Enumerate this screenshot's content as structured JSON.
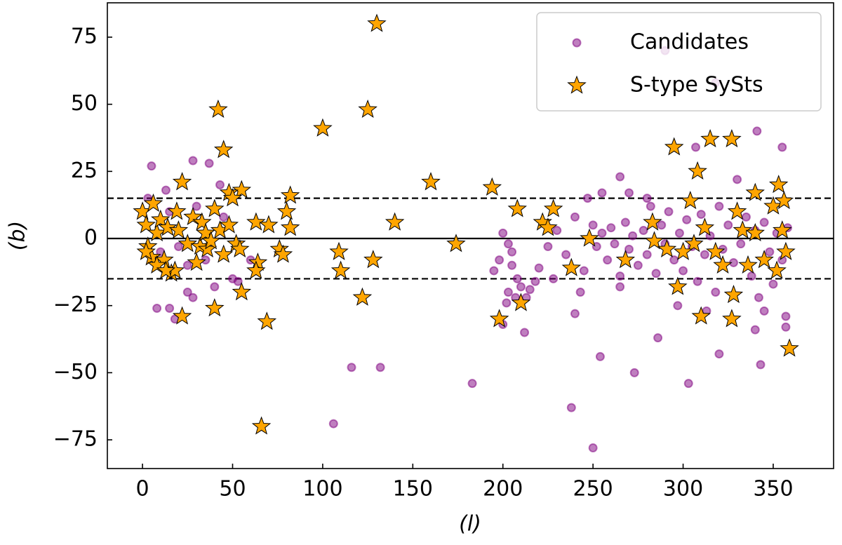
{
  "chart_data": {
    "type": "scatter",
    "xlabel": "(l)",
    "ylabel": "(b)",
    "xlim": [
      -19.5,
      383.5
    ],
    "ylim": [
      -85.7,
      87.8
    ],
    "xticks": [
      0,
      50,
      100,
      150,
      200,
      250,
      300,
      350
    ],
    "yticks": [
      {
        "value": -75,
        "label": "−75"
      },
      {
        "value": -50,
        "label": "−50"
      },
      {
        "value": -25,
        "label": "−25"
      },
      0,
      25,
      50,
      75
    ],
    "hlines": [
      {
        "value": 0,
        "style": "solid"
      },
      {
        "value": 15,
        "style": "dashed"
      },
      {
        "value": -15,
        "style": "dashed"
      }
    ],
    "legend": "upper right",
    "series": [
      {
        "name": "Candidates",
        "color": "#800080",
        "alpha": 0.5,
        "marker": "circle",
        "x": [
          5,
          28,
          37,
          43,
          13,
          8,
          15,
          25,
          28,
          18,
          50,
          53,
          106,
          116,
          132,
          183,
          238,
          250,
          254,
          273,
          303,
          286,
          320,
          343,
          340,
          357,
          355,
          341,
          307,
          290,
          318,
          265,
          255,
          270,
          200,
          212,
          240,
          205,
          208,
          195,
          203,
          210,
          215,
          213,
          218,
          200,
          203,
          205,
          198,
          202,
          207,
          220,
          225,
          230,
          235,
          240,
          245,
          250,
          252,
          255,
          258,
          260,
          262,
          265,
          268,
          270,
          272,
          275,
          278,
          280,
          282,
          285,
          288,
          290,
          292,
          295,
          298,
          300,
          302,
          305,
          308,
          310,
          312,
          315,
          318,
          320,
          322,
          325,
          328,
          330,
          332,
          335,
          338,
          340,
          342,
          345,
          348,
          350,
          352,
          355,
          357,
          358,
          247,
          243,
          265,
          280,
          297,
          313,
          345,
          60,
          10,
          20,
          30,
          35,
          45,
          3,
          15,
          40,
          25,
          228
        ],
        "values": [
          27,
          29,
          28,
          20,
          18,
          -26,
          -26,
          -20,
          -22,
          -30,
          -15,
          -16,
          -69,
          -48,
          -48,
          -54,
          -63,
          -78,
          -44,
          -50,
          -54,
          -37,
          -43,
          -47,
          -34,
          -29,
          34,
          40,
          34,
          70,
          58,
          23,
          17,
          17,
          -32,
          -35,
          -28,
          -10,
          -15,
          -12,
          -20,
          -18,
          -19,
          -22,
          -16,
          2,
          -2,
          -5,
          -8,
          -24,
          -22,
          -11,
          -3,
          3,
          -6,
          8,
          -12,
          5,
          -3,
          2,
          -8,
          4,
          -2,
          -14,
          6,
          -4,
          1,
          -10,
          3,
          -6,
          12,
          -13,
          5,
          -2,
          10,
          -8,
          2,
          -12,
          7,
          -3,
          -16,
          9,
          -6,
          1,
          -20,
          12,
          -4,
          5,
          -9,
          22,
          -2,
          8,
          -14,
          3,
          -22,
          6,
          -5,
          -17,
          2,
          -8,
          -33,
          4,
          15,
          -20,
          -18,
          15,
          -25,
          -27,
          -27,
          -8,
          -5,
          -3,
          12,
          -8,
          8,
          15,
          10,
          -18,
          -10,
          -15
        ]
      },
      {
        "name": "S-type SySts",
        "color": "#ffa500",
        "edgecolor": "#000000",
        "marker": "star",
        "x": [
          130,
          42,
          125,
          100,
          45,
          22,
          160,
          194,
          55,
          48,
          82,
          80,
          63,
          70,
          82,
          140,
          109,
          128,
          110,
          174,
          76,
          78,
          64,
          63,
          55,
          40,
          22,
          69,
          66,
          122,
          198,
          210,
          208,
          222,
          228,
          225,
          248,
          238,
          268,
          283,
          284,
          295,
          291,
          297,
          304,
          308,
          315,
          327,
          306,
          310,
          327,
          328,
          330,
          333,
          340,
          345,
          350,
          353,
          356,
          359,
          355,
          357,
          352,
          340,
          336,
          322,
          318,
          312,
          300,
          0,
          2,
          3,
          5,
          6,
          8,
          10,
          12,
          14,
          16,
          18,
          19,
          20,
          25,
          28,
          30,
          32,
          33,
          35,
          36,
          38,
          40,
          43,
          45,
          48,
          52,
          50,
          54,
          2,
          8,
          13
        ],
        "values": [
          80,
          48,
          48,
          41,
          33,
          21,
          21,
          19,
          18,
          17,
          16,
          10,
          6,
          5,
          4,
          6,
          -5,
          -8,
          -12,
          -2,
          -4,
          -6,
          -9,
          -12,
          -20,
          -26,
          -29,
          -31,
          -70,
          -22,
          -30,
          -24,
          11,
          6,
          11,
          4,
          0,
          -11,
          -8,
          6,
          -1,
          34,
          -4,
          -18,
          14,
          25,
          37,
          37,
          -2,
          -29,
          -30,
          -21,
          10,
          3,
          17,
          -8,
          12,
          20,
          14,
          -41,
          3,
          -5,
          -12,
          2,
          -10,
          -10,
          -5,
          4,
          -5,
          10,
          5,
          -3,
          -7,
          13,
          2,
          7,
          -8,
          4,
          -13,
          -12,
          10,
          3,
          -2,
          8,
          -9,
          -3,
          6,
          2,
          -4,
          -1,
          11,
          3,
          -6,
          5,
          -2,
          15,
          -4,
          -5,
          -10,
          -12
        ]
      }
    ]
  }
}
